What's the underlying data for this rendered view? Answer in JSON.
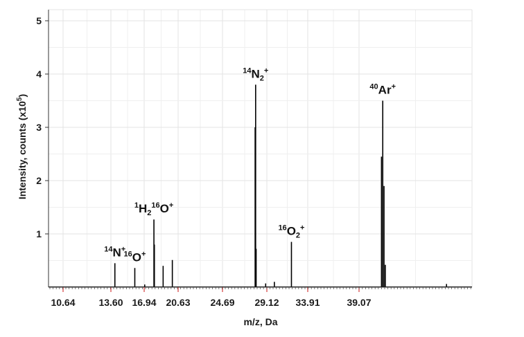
{
  "chart_data": {
    "type": "line",
    "title": "",
    "xlabel": "m/z, Da",
    "ylabel": "Intensity, counts (x10",
    "ylabel_sup": "5",
    "ylabel_end": ")",
    "xlim": [
      10.64,
      43.5
    ],
    "ylim": [
      0,
      5.2
    ],
    "x_ticks": [
      10.64,
      13.6,
      16.94,
      20.63,
      24.69,
      29.12,
      33.91,
      39.07
    ],
    "x_tick_labels": [
      "10.64",
      "13.60",
      "16.94",
      "20.63",
      "24.69",
      "29.12",
      "33.91",
      "39.07"
    ],
    "y_ticks": [
      1,
      2,
      3,
      4,
      5
    ],
    "y_tick_labels": [
      "1",
      "2",
      "3",
      "4",
      "5"
    ],
    "grid": true,
    "colors": {
      "peaks": "#000000",
      "axis": "#d23b3b",
      "grid": "#e3e3e3"
    },
    "peaks": [
      {
        "x": 14.0,
        "y": 0.45
      },
      {
        "x": 16.0,
        "y": 0.36
      },
      {
        "x": 17.0,
        "y": 0.05
      },
      {
        "x": 18.0,
        "y": 1.27
      },
      {
        "x": 18.05,
        "y": 0.8
      },
      {
        "x": 19.0,
        "y": 0.4
      },
      {
        "x": 20.0,
        "y": 0.51
      },
      {
        "x": 27.95,
        "y": 3.0
      },
      {
        "x": 28.0,
        "y": 3.8
      },
      {
        "x": 28.05,
        "y": 0.72
      },
      {
        "x": 29.0,
        "y": 0.07
      },
      {
        "x": 30.0,
        "y": 0.1
      },
      {
        "x": 32.0,
        "y": 0.85
      },
      {
        "x": 39.95,
        "y": 2.45
      },
      {
        "x": 40.0,
        "y": 3.5
      },
      {
        "x": 40.05,
        "y": 1.9
      },
      {
        "x": 40.1,
        "y": 0.42
      },
      {
        "x": 42.5,
        "y": 0.06
      }
    ],
    "annotations": [
      {
        "x": 14.0,
        "y": 0.45,
        "parts": [
          [
            "sup",
            "14"
          ],
          [
            "n",
            "N"
          ],
          [
            "sup",
            "+"
          ]
        ]
      },
      {
        "x": 16.0,
        "y": 0.36,
        "parts": [
          [
            "sup",
            "16"
          ],
          [
            "n",
            "O"
          ],
          [
            "sup",
            "+"
          ]
        ]
      },
      {
        "x": 18.0,
        "y": 1.27,
        "parts": [
          [
            "sup",
            "1"
          ],
          [
            "n",
            "H"
          ],
          [
            "sub",
            "2"
          ],
          [
            "sup",
            "16"
          ],
          [
            "n",
            "O"
          ],
          [
            "sup",
            "+"
          ]
        ]
      },
      {
        "x": 28.0,
        "y": 3.8,
        "parts": [
          [
            "sup",
            "14"
          ],
          [
            "n",
            "N"
          ],
          [
            "sub",
            "2"
          ],
          [
            "sup",
            "+"
          ]
        ]
      },
      {
        "x": 32.0,
        "y": 0.85,
        "parts": [
          [
            "sup",
            "16"
          ],
          [
            "n",
            "O"
          ],
          [
            "sub",
            "2"
          ],
          [
            "sup",
            "+"
          ]
        ]
      },
      {
        "x": 40.0,
        "y": 3.5,
        "parts": [
          [
            "sup",
            "40"
          ],
          [
            "n",
            "Ar"
          ],
          [
            "sup",
            "+"
          ]
        ]
      }
    ]
  }
}
